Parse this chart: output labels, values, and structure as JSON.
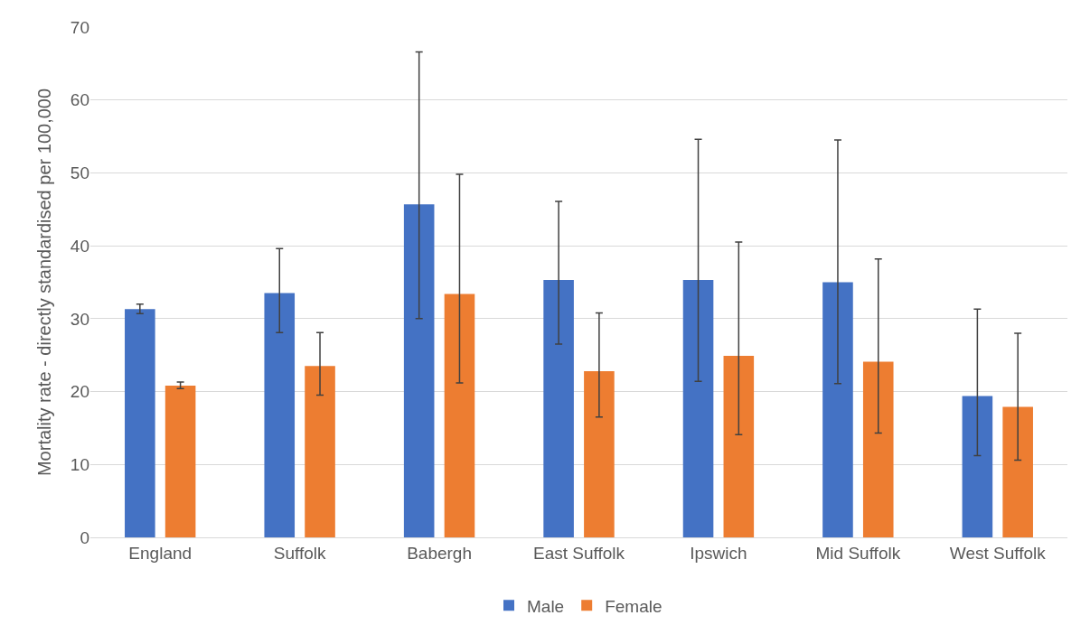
{
  "chart_data": {
    "type": "bar",
    "ylabel": "Mortality rate - directly standardised per 100,000",
    "categories": [
      "England",
      "Suffolk",
      "Babergh",
      "East Suffolk",
      "Ipswich",
      "Mid Suffolk",
      "West Suffolk"
    ],
    "series": [
      {
        "name": "Male",
        "color": "#4472c4",
        "values": [
          31.3,
          33.5,
          45.7,
          35.3,
          35.3,
          35.0,
          19.4
        ],
        "errors": [
          [
            30.7,
            32.0
          ],
          [
            28.1,
            39.6
          ],
          [
            30.0,
            66.6
          ],
          [
            26.5,
            46.1
          ],
          [
            21.4,
            54.6
          ],
          [
            21.1,
            54.5
          ],
          [
            11.2,
            31.3
          ]
        ]
      },
      {
        "name": "Female",
        "color": "#ed7d31",
        "values": [
          20.8,
          23.5,
          33.4,
          22.8,
          24.9,
          24.1,
          17.9
        ],
        "errors": [
          [
            20.4,
            21.3
          ],
          [
            19.5,
            28.1
          ],
          [
            21.2,
            49.8
          ],
          [
            16.5,
            30.8
          ],
          [
            14.1,
            40.5
          ],
          [
            14.3,
            38.2
          ],
          [
            10.6,
            28.0
          ]
        ]
      }
    ],
    "ylim": [
      0,
      70
    ],
    "yticks": [
      0,
      10,
      20,
      30,
      40,
      50,
      60,
      70
    ],
    "grid": "y",
    "legend": "bottom"
  }
}
